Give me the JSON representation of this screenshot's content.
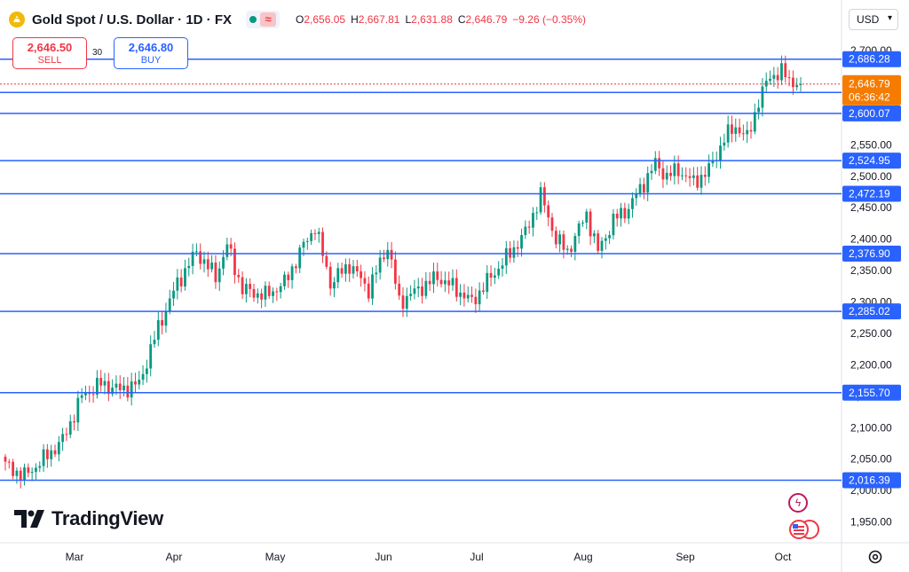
{
  "header": {
    "title": "Gold Spot / U.S. Dollar · 1D · FX",
    "ohlc": [
      {
        "label": "O",
        "value": "2,656.05"
      },
      {
        "label": "H",
        "value": "2,667.81"
      },
      {
        "label": "L",
        "value": "2,631.88"
      },
      {
        "label": "C",
        "value": "2,646.79"
      }
    ],
    "change": "−9.26 (−0.35%)"
  },
  "currency": "USD",
  "trade": {
    "sell_price": "2,646.50",
    "sell_label": "SELL",
    "buy_price": "2,646.80",
    "buy_label": "BUY",
    "spread": "30"
  },
  "brand": "TradingView",
  "colors": {
    "up": "#089981",
    "down": "#f23645",
    "level_line": "#2962ff",
    "last_price": "#f57c00"
  },
  "icons": [
    "gold-coin-icon",
    "market-open-icon",
    "wave-icon",
    "tradingview-logo-icon",
    "bolt-icon",
    "us-flag-icon",
    "gear-icon"
  ],
  "chart_data": {
    "type": "candlestick",
    "x_labels": [
      "Mar",
      "Apr",
      "May",
      "Jun",
      "Jul",
      "Aug",
      "Sep",
      "Oct"
    ],
    "y_ticks": [
      1950,
      2000,
      2050,
      2100,
      2150,
      2200,
      2250,
      2300,
      2350,
      2400,
      2450,
      2500,
      2550,
      2600,
      2650,
      2700
    ],
    "y_tick_labels": [
      "1,950.00",
      "2,000.00",
      "2,050.00",
      "2,100.00",
      "2,150.00",
      "2,200.00",
      "2,250.00",
      "2,300.00",
      "2,350.00",
      "2,400.00",
      "2,450.00",
      "2,500.00",
      "2,550.00",
      "2,600.00",
      "2,650.00",
      "2,700.00"
    ],
    "ylim": [
      1917,
      2724
    ],
    "levels": [
      {
        "value": 2686.28,
        "label": "2,686.28"
      },
      {
        "value": 2633.37,
        "label": "2,633.37"
      },
      {
        "value": 2600.07,
        "label": "2,600.07"
      },
      {
        "value": 2524.95,
        "label": "2,524.95"
      },
      {
        "value": 2472.19,
        "label": "2,472.19"
      },
      {
        "value": 2376.9,
        "label": "2,376.90"
      },
      {
        "value": 2285.02,
        "label": "2,285.02"
      },
      {
        "value": 2155.7,
        "label": "2,155.70"
      },
      {
        "value": 2016.39,
        "label": "2,016.39"
      }
    ],
    "last_price": {
      "value": 2646.79,
      "label": "2,646.79",
      "countdown": "06:36:42"
    },
    "anchors": [
      [
        0,
        2040
      ],
      [
        5,
        2023
      ],
      [
        10,
        2050
      ],
      [
        15,
        2080
      ],
      [
        20,
        2150
      ],
      [
        25,
        2170
      ],
      [
        30,
        2160
      ],
      [
        35,
        2170
      ],
      [
        40,
        2260
      ],
      [
        45,
        2330
      ],
      [
        50,
        2380
      ],
      [
        55,
        2340
      ],
      [
        58,
        2390
      ],
      [
        62,
        2320
      ],
      [
        68,
        2310
      ],
      [
        73,
        2330
      ],
      [
        78,
        2390
      ],
      [
        81,
        2420
      ],
      [
        85,
        2330
      ],
      [
        90,
        2360
      ],
      [
        95,
        2320
      ],
      [
        100,
        2390
      ],
      [
        103,
        2300
      ],
      [
        108,
        2320
      ],
      [
        113,
        2340
      ],
      [
        118,
        2320
      ],
      [
        122,
        2300
      ],
      [
        127,
        2340
      ],
      [
        131,
        2370
      ],
      [
        136,
        2410
      ],
      [
        140,
        2470
      ],
      [
        144,
        2400
      ],
      [
        147,
        2380
      ],
      [
        152,
        2440
      ],
      [
        155,
        2380
      ],
      [
        159,
        2430
      ],
      [
        163,
        2450
      ],
      [
        167,
        2490
      ],
      [
        170,
        2520
      ],
      [
        173,
        2500
      ],
      [
        176,
        2510
      ],
      [
        180,
        2490
      ],
      [
        184,
        2510
      ],
      [
        188,
        2560
      ],
      [
        191,
        2580
      ],
      [
        194,
        2560
      ],
      [
        197,
        2620
      ],
      [
        200,
        2660
      ],
      [
        203,
        2665
      ],
      [
        206,
        2650
      ],
      [
        208,
        2646.79
      ]
    ]
  }
}
